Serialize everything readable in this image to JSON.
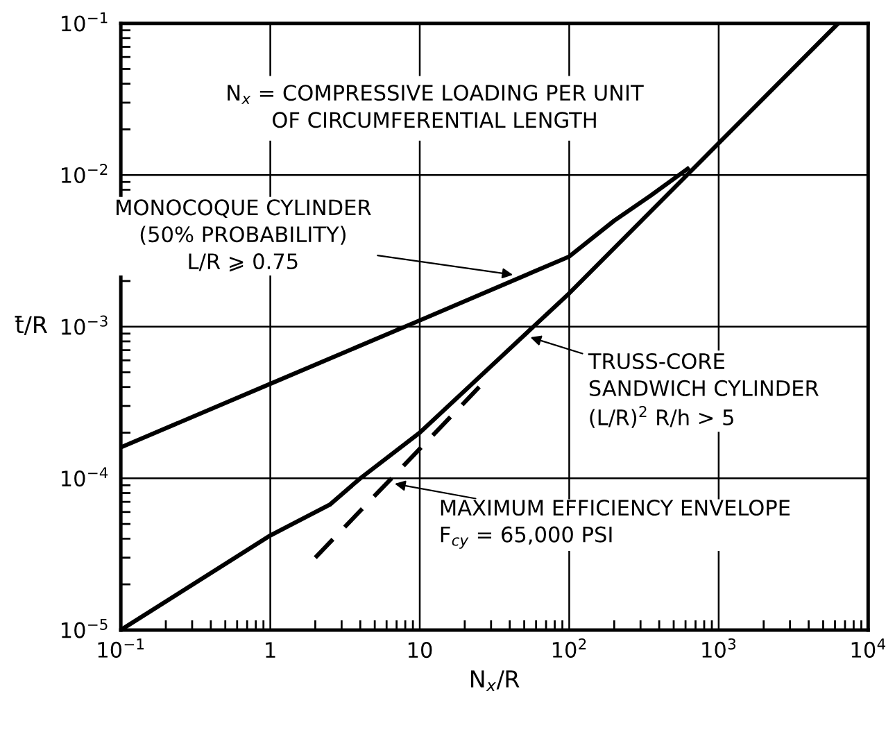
{
  "chart_data": {
    "type": "line",
    "xlabel": "N$_{x}$/R",
    "ylabel": "t̄/R",
    "log": "xy",
    "xlim": [
      0.1,
      10000
    ],
    "ylim": [
      1e-05,
      0.1
    ],
    "xticks": [
      {
        "value": 0.1,
        "label": "10$^{−1}$"
      },
      1,
      10,
      {
        "value": 100,
        "label": "10$^{2}$"
      },
      {
        "value": 1000,
        "label": "10$^{3}$"
      },
      {
        "value": 10000,
        "label": "10$^{4}$"
      }
    ],
    "yticks": [
      {
        "value": 1e-05,
        "label": "10$^{−5}$"
      },
      {
        "value": 0.0001,
        "label": "10$^{−4}$"
      },
      {
        "value": 0.001,
        "label": "10$^{−3}$"
      },
      {
        "value": 0.01,
        "label": "10$^{−2}$"
      },
      {
        "value": 0.1,
        "label": "10$^{−1}$"
      }
    ],
    "grid": true,
    "legend": false,
    "series": [
      {
        "color": "#000000",
        "line_style": "solid",
        "x": [
          0.1,
          1,
          10,
          100,
          200,
          350,
          620
        ],
        "values": [
          0.00016,
          0.00042,
          0.0011,
          0.0029,
          0.005,
          0.0073,
          0.011
        ]
      },
      {
        "color": "#000000",
        "line_style": "solid",
        "x": [
          0.1,
          1,
          2.5,
          4,
          10,
          100,
          1000,
          6300
        ],
        "values": [
          1e-05,
          4.2e-05,
          6.7e-05,
          0.0001,
          0.0002,
          0.00166,
          0.0162,
          0.1
        ]
      },
      {
        "color": "#000000",
        "line_style": "dashed",
        "x": [
          2,
          25
        ],
        "values": [
          3e-05,
          0.0004
        ]
      }
    ],
    "annotations": [
      "N$_{x}$ = COMPRESSIVE LOADING PER UNIT\nOF CIRCUMFERENTIAL LENGTH",
      {
        "text": "MONOCOQUE CYLINDER\n(50% PROBABILITY)\nL/R ⩾ 0.75",
        "x": 42,
        "y": 0.0022
      },
      {
        "text": "TRUSS-CORE\nSANDWICH CYLINDER\n(L/R)$^{2}$ R/h > 5",
        "x": 55,
        "y": 0.00085
      },
      {
        "text": "MAXIMUM EFFICIENCY ENVELOPE\nF$_{cy}$ = 65,000 PSI",
        "x": 6.8,
        "y": 9.2e-05
      }
    ]
  }
}
